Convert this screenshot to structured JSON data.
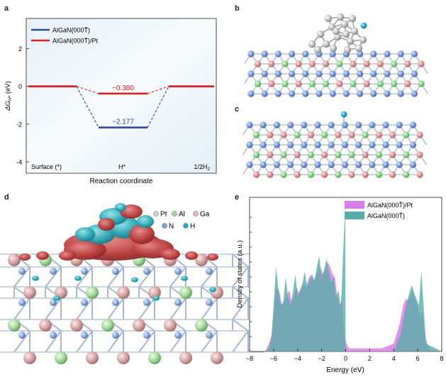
{
  "panels": {
    "a": {
      "letter": "a"
    },
    "b": {
      "letter": "b"
    },
    "c": {
      "letter": "c"
    },
    "d": {
      "letter": "d"
    },
    "e": {
      "letter": "e"
    }
  },
  "chart_data": [
    {
      "type": "line",
      "panel": "a",
      "xlabel": "Reaction coordinate",
      "ylabel": "ΔG_H* (eV)",
      "ylim": [
        -4.6,
        3.6
      ],
      "yticks": [
        2,
        0,
        -2,
        -4
      ],
      "categories": [
        "Surface (*)",
        "H*",
        "1/2H2"
      ],
      "series": [
        {
          "name": "AlGaN(000T̄)",
          "values": [
            0,
            -2.177,
            0
          ],
          "color": "#2b4a9a",
          "label": "−2.177"
        },
        {
          "name": "AlGaN(000T̄)/Pt",
          "values": [
            0,
            -0.38,
            0
          ],
          "color": "#e02020",
          "label": "−0.380"
        }
      ],
      "legend": "top-left"
    },
    {
      "type": "area",
      "panel": "e",
      "xlabel": "Energy (eV)",
      "ylabel": "Density of states (a.u.)",
      "xlim": [
        -8,
        8
      ],
      "xticks": [
        -8,
        -6,
        -4,
        -2,
        0,
        2,
        4,
        6,
        8
      ],
      "legend": "top-right",
      "series": [
        {
          "name": "AlGaN(000T̄)/Pt",
          "color": "#d97ee8",
          "x": [
            -8,
            -6.7,
            -6.4,
            -6.1,
            -5.9,
            -5.7,
            -5.5,
            -5.3,
            -5.1,
            -4.9,
            -4.7,
            -4.5,
            -4.3,
            -4.1,
            -3.9,
            -3.7,
            -3.5,
            -3.3,
            -3.1,
            -2.9,
            -2.7,
            -2.5,
            -2.3,
            -2.1,
            -1.9,
            -1.7,
            -1.5,
            -1.3,
            -1.1,
            -0.9,
            -0.7,
            -0.5,
            -0.3,
            -0.1,
            0.1,
            0.3,
            0.6,
            1.0,
            2.0,
            3.0,
            4.0,
            4.5,
            4.8,
            5.0,
            5.2,
            5.4,
            5.6,
            5.8,
            6.0,
            6.2,
            6.4,
            6.6,
            6.8,
            7.0,
            8
          ],
          "y": [
            0,
            0,
            0.05,
            0.12,
            0.35,
            0.42,
            0.38,
            0.3,
            0.33,
            0.36,
            0.4,
            0.32,
            0.36,
            0.42,
            0.38,
            0.4,
            0.44,
            0.42,
            0.47,
            0.5,
            0.46,
            0.49,
            0.52,
            0.55,
            0.5,
            0.53,
            0.58,
            0.55,
            0.5,
            0.48,
            0.36,
            0.3,
            0.35,
            0.1,
            0.04,
            0.02,
            0.02,
            0.02,
            0.02,
            0.02,
            0.05,
            0.18,
            0.3,
            0.34,
            0.33,
            0.36,
            0.4,
            0.33,
            0.3,
            0.22,
            0.26,
            0.1,
            0.05,
            0.01,
            0
          ]
        },
        {
          "name": "AlGaN(000T̄)",
          "color": "#5aaea8",
          "x": [
            -8,
            -6.7,
            -6.4,
            -6.2,
            -6.0,
            -5.8,
            -5.6,
            -5.4,
            -5.2,
            -5.0,
            -4.8,
            -4.6,
            -4.4,
            -4.2,
            -4.0,
            -3.8,
            -3.6,
            -3.4,
            -3.2,
            -3.0,
            -2.8,
            -2.6,
            -2.4,
            -2.2,
            -2.0,
            -1.8,
            -1.6,
            -1.4,
            -1.2,
            -1.0,
            -0.8,
            -0.6,
            -0.4,
            -0.2,
            -0.05,
            0.0,
            2.0,
            4.0,
            4.6,
            4.9,
            5.1,
            5.3,
            5.5,
            5.7,
            5.9,
            6.1,
            6.3,
            6.5,
            6.7,
            8
          ],
          "y": [
            0,
            0,
            0.02,
            0.08,
            0.3,
            0.55,
            0.4,
            0.3,
            0.32,
            0.48,
            0.36,
            0.3,
            0.38,
            0.5,
            0.35,
            0.4,
            0.44,
            0.52,
            0.42,
            0.46,
            0.5,
            0.46,
            0.55,
            0.62,
            0.48,
            0.53,
            0.6,
            0.52,
            0.45,
            0.48,
            0.35,
            0.4,
            0.28,
            0.65,
            0.95,
            0,
            0,
            0,
            0.12,
            0.25,
            0.32,
            0.38,
            0.43,
            0.38,
            0.34,
            0.3,
            0.52,
            0.28,
            0.05,
            0
          ]
        }
      ]
    }
  ],
  "panel_d": {
    "legend": [
      {
        "label": "Pt",
        "color": "#cfcfcf"
      },
      {
        "label": "Al",
        "color": "#9dd79d"
      },
      {
        "label": "Ga",
        "color": "#e2b4b4"
      },
      {
        "label": "N",
        "color": "#7a9fd8"
      },
      {
        "label": "H",
        "color": "#2aa9c9"
      }
    ]
  }
}
